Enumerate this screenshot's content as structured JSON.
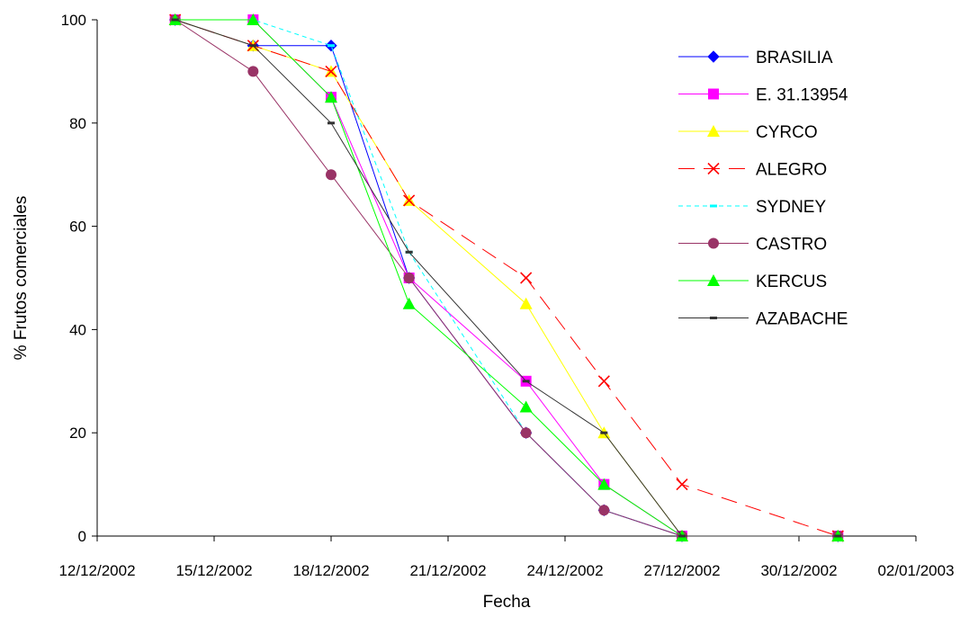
{
  "chart_data": {
    "type": "line",
    "title": "",
    "xlabel": "Fecha",
    "ylabel": "% Frutos comerciales",
    "xlim": [
      "12/12/2002",
      "02/01/2003"
    ],
    "ylim": [
      0,
      100
    ],
    "x_ticks": [
      "12/12/2002",
      "15/12/2002",
      "18/12/2002",
      "21/12/2002",
      "24/12/2002",
      "27/12/2002",
      "30/12/2002",
      "02/01/2003"
    ],
    "y_ticks": [
      0,
      20,
      40,
      60,
      80,
      100
    ],
    "grid": false,
    "legend_position": "top-right",
    "x": [
      "14/12/2002",
      "16/12/2002",
      "18/12/2002",
      "20/12/2002",
      "23/12/2002",
      "25/12/2002",
      "27/12/2002",
      "31/12/2002"
    ],
    "series": [
      {
        "name": "BRASILIA",
        "values": [
          100,
          95,
          95,
          50,
          20,
          5,
          0,
          0
        ],
        "color": "#0000ff",
        "marker": "diamond",
        "dash": "solid"
      },
      {
        "name": "E. 31.13954",
        "values": [
          100,
          100,
          85,
          50,
          30,
          10,
          0,
          0
        ],
        "color": "#ff00ff",
        "marker": "square",
        "dash": "solid"
      },
      {
        "name": "CYRCO",
        "values": [
          100,
          95,
          90,
          65,
          45,
          20,
          0,
          0
        ],
        "color": "#ffff00",
        "marker": "triangle",
        "dash": "solid"
      },
      {
        "name": "ALEGRO",
        "values": [
          100,
          95,
          90,
          65,
          50,
          30,
          10,
          0
        ],
        "color": "#ff0000",
        "marker": "x",
        "dash": "longdash"
      },
      {
        "name": "SYDNEY",
        "values": [
          100,
          100,
          95,
          55,
          20,
          5,
          0,
          0
        ],
        "color": "#00ffff",
        "marker": "dash",
        "dash": "shortdash"
      },
      {
        "name": "CASTRO",
        "values": [
          100,
          90,
          70,
          50,
          20,
          5,
          0,
          0
        ],
        "color": "#993366",
        "marker": "circle",
        "dash": "solid"
      },
      {
        "name": "KERCUS",
        "values": [
          100,
          100,
          85,
          45,
          25,
          10,
          0,
          0
        ],
        "color": "#00ff00",
        "marker": "triangle",
        "dash": "solid"
      },
      {
        "name": "AZABACHE",
        "values": [
          100,
          95,
          80,
          55,
          30,
          20,
          0,
          0
        ],
        "color": "#333333",
        "marker": "dash",
        "dash": "solid"
      }
    ]
  }
}
